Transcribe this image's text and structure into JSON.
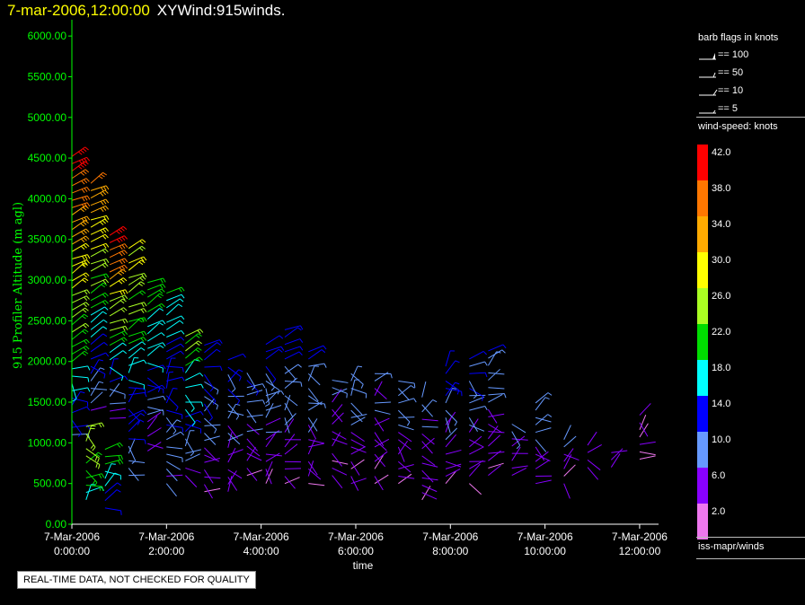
{
  "header": {
    "datetime": "7-mar-2006,12:00:00",
    "plot_name": "XYWind:915winds."
  },
  "colors": {
    "title_date": "#ffff00",
    "axis": "#00ff00",
    "text": "#ffffff",
    "background": "#000000"
  },
  "legend": {
    "barb_title": "barb flags in knots",
    "barbs": [
      {
        "label": "== 100",
        "icon": "pennant-flag-icon"
      },
      {
        "label": "== 50",
        "icon": "half-pennant-flag-icon"
      },
      {
        "label": "== 10",
        "icon": "full-barb-icon"
      },
      {
        "label": "== 5",
        "icon": "half-barb-icon"
      }
    ],
    "speed_title": "wind-speed: knots",
    "speed_bins": [
      {
        "label": "42.0",
        "color": "#ff0000"
      },
      {
        "label": "38.0",
        "color": "#ff7700"
      },
      {
        "label": "34.0",
        "color": "#ffaa00"
      },
      {
        "label": "30.0",
        "color": "#ffff00"
      },
      {
        "label": "26.0",
        "color": "#aaff22"
      },
      {
        "label": "22.0",
        "color": "#00dd00"
      },
      {
        "label": "18.0",
        "color": "#00ffff"
      },
      {
        "label": "14.0",
        "color": "#0000ff"
      },
      {
        "label": "10.0",
        "color": "#6699ff"
      },
      {
        "label": "6.0",
        "color": "#8800ff"
      },
      {
        "label": "2.0",
        "color": "#ee77ee"
      }
    ],
    "source": "iss-mapr/winds"
  },
  "footer": {
    "quality_note": "REAL-TIME DATA, NOT CHECKED FOR QUALITY"
  },
  "chart_data": {
    "type": "scatter",
    "title": "7-mar-2006,12:00:00 XYWind:915winds.",
    "xlabel": "time",
    "ylabel": "915 Profiler Altitude (m agl)",
    "ylim": [
      0,
      6200
    ],
    "xlim_hours": [
      0,
      12.4
    ],
    "y_ticks": [
      "0.00",
      "500.00",
      "1000.00",
      "1500.00",
      "2000.00",
      "2500.00",
      "3000.00",
      "3500.00",
      "4000.00",
      "4500.00",
      "5000.00",
      "5500.00",
      "6000.00"
    ],
    "x_ticks": [
      {
        "date": "7-Mar-2006",
        "time": "0:00:00",
        "hour": 0
      },
      {
        "date": "7-Mar-2006",
        "time": "2:00:00",
        "hour": 2
      },
      {
        "date": "7-Mar-2006",
        "time": "4:00:00",
        "hour": 4
      },
      {
        "date": "7-Mar-2006",
        "time": "6:00:00",
        "hour": 6
      },
      {
        "date": "7-Mar-2006",
        "time": "8:00:00",
        "hour": 8
      },
      {
        "date": "7-Mar-2006",
        "time": "10:00:00",
        "hour": 10
      },
      {
        "date": "7-Mar-2006",
        "time": "12:00:00",
        "hour": 12
      }
    ],
    "grid": false,
    "barb_profiles": [
      {
        "hour": 0.0,
        "alt_min": 1100,
        "alt_max": 4550,
        "speed_low": 12,
        "speed_high": 43
      },
      {
        "hour": 0.3,
        "alt_min": 300,
        "alt_max": 1200,
        "speed_low": 18,
        "speed_high": 28
      },
      {
        "hour": 0.4,
        "alt_min": 1400,
        "alt_max": 4250,
        "speed_low": 8,
        "speed_high": 36
      },
      {
        "hour": 0.7,
        "alt_min": 200,
        "alt_max": 1000,
        "speed_low": 14,
        "speed_high": 24
      },
      {
        "hour": 0.8,
        "alt_min": 1300,
        "alt_max": 3550,
        "speed_low": 6,
        "speed_high": 42
      },
      {
        "hour": 1.2,
        "alt_min": 600,
        "alt_max": 3400,
        "speed_low": 8,
        "speed_high": 30
      },
      {
        "hour": 1.6,
        "alt_min": 900,
        "alt_max": 3000,
        "speed_low": 6,
        "speed_high": 24
      },
      {
        "hour": 2.0,
        "alt_min": 500,
        "alt_max": 2850,
        "speed_low": 8,
        "speed_high": 20
      },
      {
        "hour": 2.4,
        "alt_min": 600,
        "alt_max": 2350,
        "speed_low": 6,
        "speed_high": 26
      },
      {
        "hour": 2.8,
        "alt_min": 400,
        "alt_max": 2250,
        "speed_low": 4,
        "speed_high": 16
      },
      {
        "hour": 3.3,
        "alt_min": 400,
        "alt_max": 2100,
        "speed_low": 4,
        "speed_high": 14
      },
      {
        "hour": 3.7,
        "alt_min": 600,
        "alt_max": 1900,
        "speed_low": 4,
        "speed_high": 12
      },
      {
        "hour": 4.1,
        "alt_min": 500,
        "alt_max": 2250,
        "speed_low": 4,
        "speed_high": 14
      },
      {
        "hour": 4.5,
        "alt_min": 500,
        "alt_max": 2450,
        "speed_low": 4,
        "speed_high": 14
      },
      {
        "hour": 5.0,
        "alt_min": 500,
        "alt_max": 2150,
        "speed_low": 4,
        "speed_high": 12
      },
      {
        "hour": 5.5,
        "alt_min": 600,
        "alt_max": 1800,
        "speed_low": 4,
        "speed_high": 10
      },
      {
        "hour": 5.9,
        "alt_min": 500,
        "alt_max": 1900,
        "speed_low": 4,
        "speed_high": 12
      },
      {
        "hour": 6.4,
        "alt_min": 500,
        "alt_max": 1850,
        "speed_low": 4,
        "speed_high": 10
      },
      {
        "hour": 6.9,
        "alt_min": 500,
        "alt_max": 1800,
        "speed_low": 4,
        "speed_high": 12
      },
      {
        "hour": 7.4,
        "alt_min": 300,
        "alt_max": 1600,
        "speed_low": 4,
        "speed_high": 10
      },
      {
        "hour": 7.9,
        "alt_min": 500,
        "alt_max": 2000,
        "speed_low": 4,
        "speed_high": 14
      },
      {
        "hour": 8.4,
        "alt_min": 500,
        "alt_max": 2100,
        "speed_low": 4,
        "speed_high": 14
      },
      {
        "hour": 8.8,
        "alt_min": 600,
        "alt_max": 2200,
        "speed_low": 4,
        "speed_high": 12
      },
      {
        "hour": 9.3,
        "alt_min": 600,
        "alt_max": 1300,
        "speed_low": 4,
        "speed_high": 10
      },
      {
        "hour": 9.8,
        "alt_min": 500,
        "alt_max": 1500,
        "speed_low": 4,
        "speed_high": 12
      },
      {
        "hour": 10.4,
        "alt_min": 500,
        "alt_max": 1100,
        "speed_low": 4,
        "speed_high": 8
      },
      {
        "hour": 10.9,
        "alt_min": 700,
        "alt_max": 1000,
        "speed_low": 4,
        "speed_high": 6
      },
      {
        "hour": 11.4,
        "alt_min": 700,
        "alt_max": 900,
        "speed_low": 4,
        "speed_high": 6
      },
      {
        "hour": 12.0,
        "alt_min": 800,
        "alt_max": 1400,
        "speed_low": 2,
        "speed_high": 6
      }
    ]
  }
}
